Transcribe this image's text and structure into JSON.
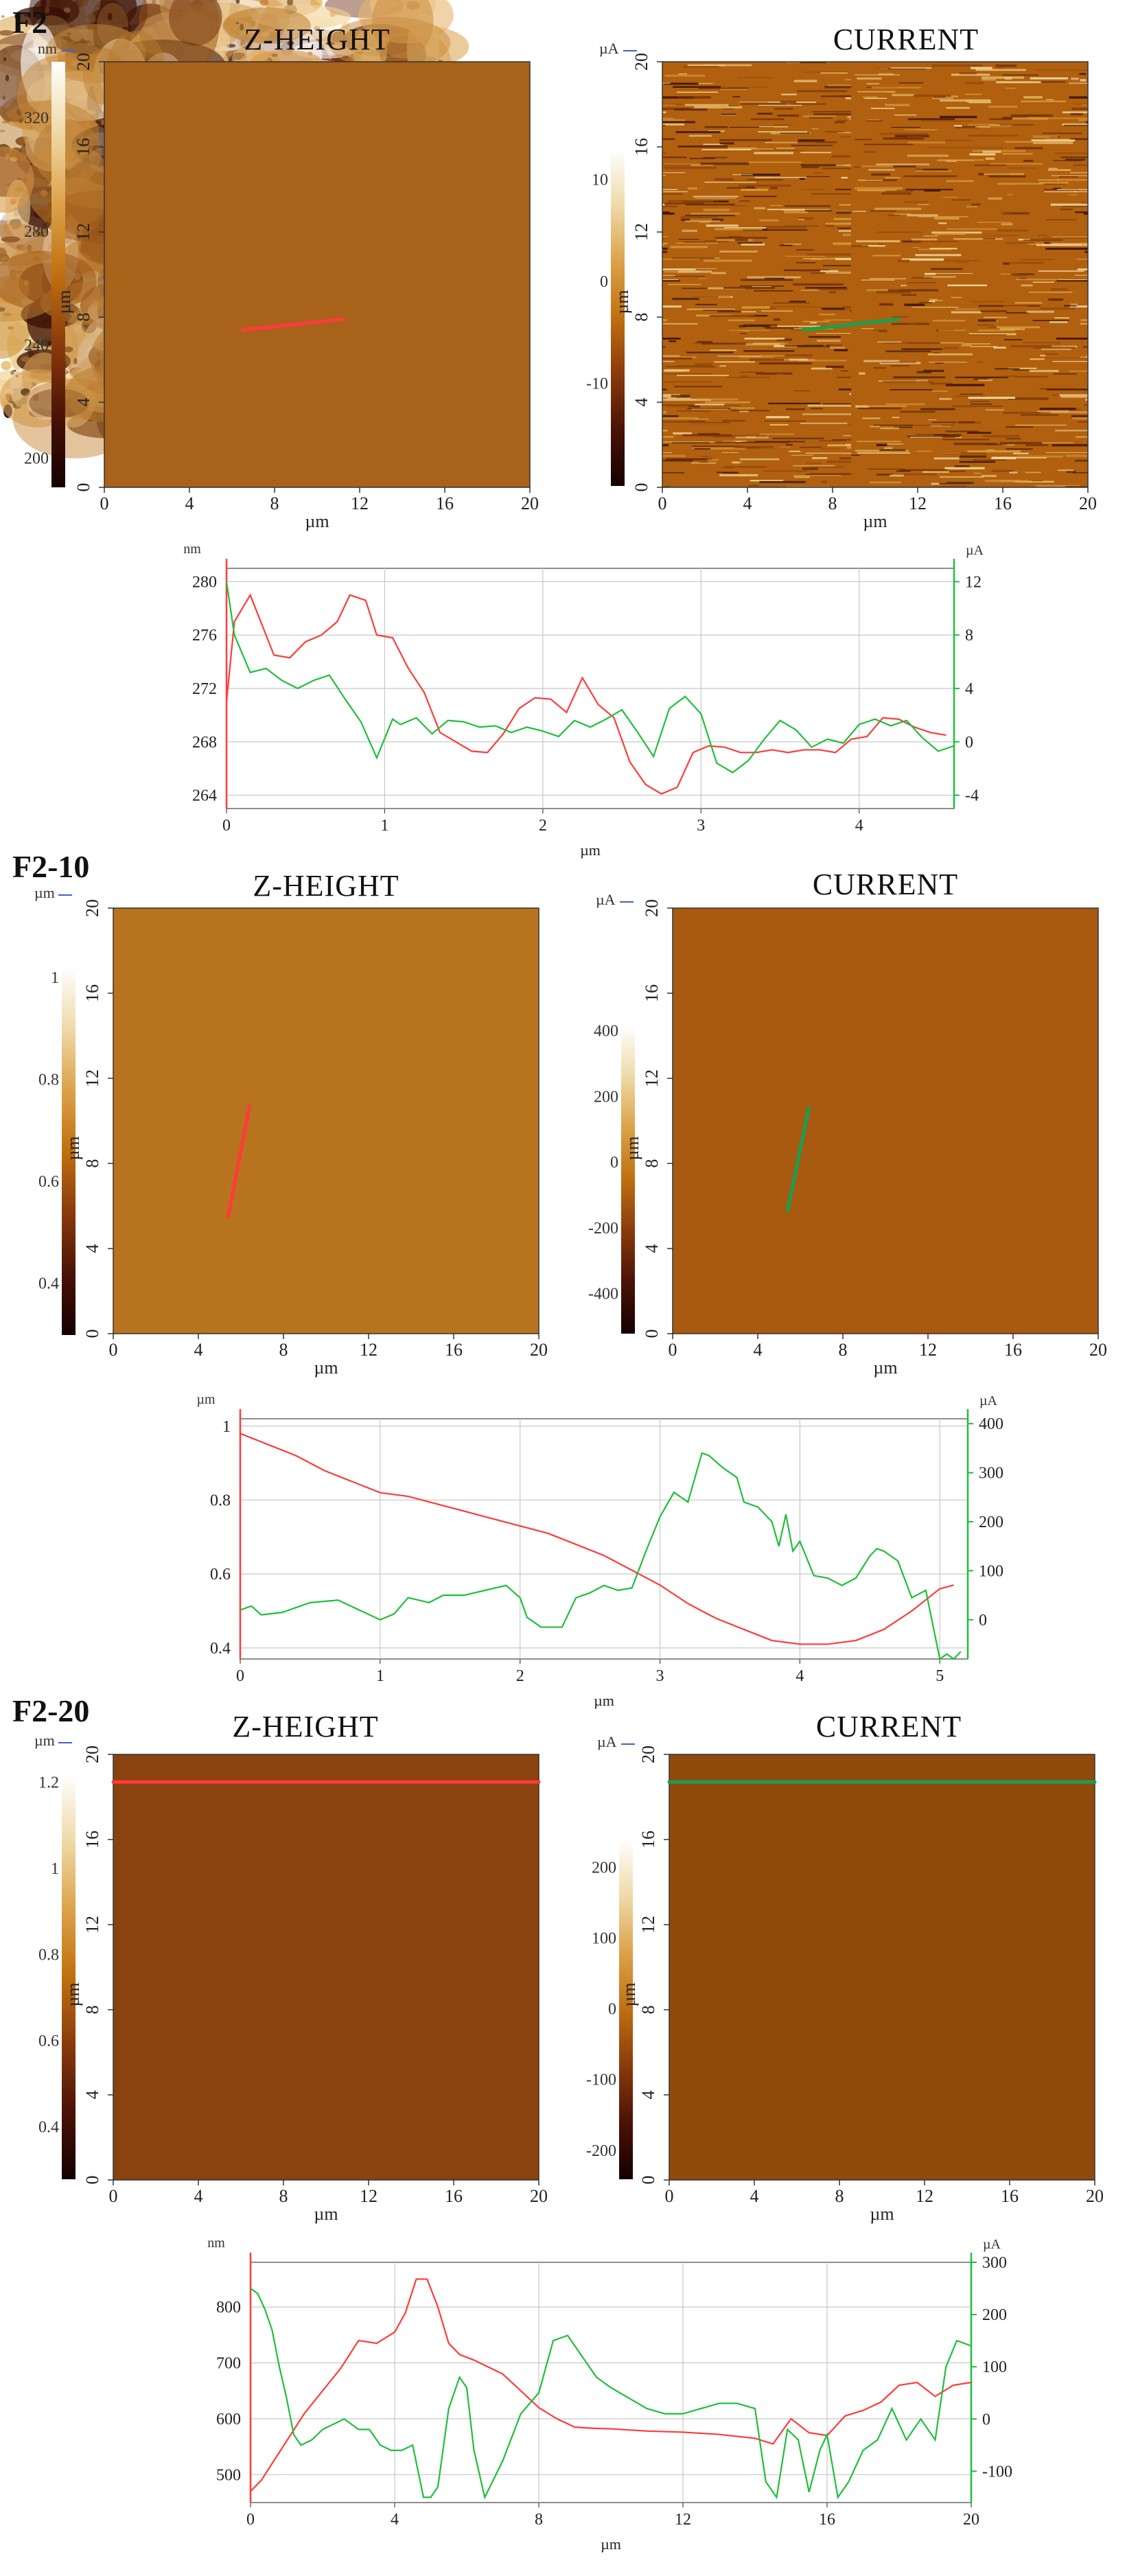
{
  "colors": {
    "height_line": "#ff3b3b",
    "current_line": "#1fbf3a",
    "current_line_dark": "#18a050",
    "grid": "#c8c8c8",
    "green_axis": "#1fbf3a",
    "red_axis": "#ff3b3b"
  },
  "chart_data": [
    {
      "id": "F2",
      "type": "line",
      "label": "F2",
      "height_map": {
        "title": "Z-HEIGHT",
        "unit": "nm",
        "colorbar_ticks": [
          "320",
          "280",
          "240",
          "200"
        ],
        "colorbar_values": [
          320,
          280,
          240,
          200
        ],
        "colorbar_range": [
          190,
          340
        ],
        "x_ticks": [
          "0",
          "4",
          "8",
          "12",
          "16",
          "20"
        ],
        "y_ticks": [
          "0",
          "4",
          "8",
          "12",
          "16",
          "20"
        ],
        "axis_unit": "µm",
        "profile_line": {
          "from": [
            6.5,
            7.4
          ],
          "to": [
            11.2,
            7.9
          ]
        }
      },
      "current_map": {
        "title": "CURRENT",
        "unit": "µA",
        "colorbar_ticks": [
          "10",
          "0",
          "-10"
        ],
        "colorbar_values": [
          10,
          0,
          -10
        ],
        "colorbar_range": [
          -20,
          13
        ],
        "x_ticks": [
          "0",
          "4",
          "8",
          "12",
          "16",
          "20"
        ],
        "y_ticks": [
          "0",
          "4",
          "8",
          "12",
          "16",
          "20"
        ],
        "axis_unit": "µm",
        "profile_line": {
          "from": [
            6.6,
            7.4
          ],
          "to": [
            11.1,
            7.9
          ]
        }
      },
      "profile": {
        "left_unit": "nm",
        "right_unit": "µA",
        "xlabel": "µm",
        "x_ticks": [
          "0",
          "1",
          "2",
          "3",
          "4"
        ],
        "left_ticks": [
          "280",
          "276",
          "272",
          "268",
          "264"
        ],
        "right_ticks": [
          "12",
          "8",
          "4",
          "0",
          "-4"
        ],
        "xlim": [
          0,
          4.6
        ],
        "left_lim": [
          263,
          281
        ],
        "right_lim": [
          -5,
          13
        ],
        "height_series": {
          "x": [
            0,
            0.05,
            0.15,
            0.3,
            0.4,
            0.5,
            0.6,
            0.7,
            0.78,
            0.88,
            0.95,
            1.05,
            1.15,
            1.25,
            1.35,
            1.45,
            1.55,
            1.65,
            1.75,
            1.85,
            1.95,
            2.05,
            2.15,
            2.25,
            2.35,
            2.45,
            2.55,
            2.65,
            2.75,
            2.85,
            2.95,
            3.05,
            3.15,
            3.25,
            3.35,
            3.45,
            3.55,
            3.65,
            3.75,
            3.85,
            3.95,
            4.05,
            4.15,
            4.25,
            4.35,
            4.45,
            4.55
          ],
          "y": [
            271,
            277,
            279,
            274.5,
            274.3,
            275.5,
            276,
            277,
            279,
            278.6,
            276,
            275.8,
            273.5,
            271.7,
            268.7,
            268,
            267.3,
            267.2,
            268.6,
            270.5,
            271.3,
            271.2,
            270.2,
            272.8,
            270.8,
            269.8,
            266.5,
            264.8,
            264.1,
            264.6,
            267.2,
            267.7,
            267.6,
            267.2,
            267.2,
            267.4,
            267.2,
            267.4,
            267.4,
            267.2,
            268.2,
            268.4,
            269.8,
            269.7,
            269.1,
            268.7,
            268.5
          ]
        },
        "current_series": {
          "x": [
            0,
            0.05,
            0.15,
            0.25,
            0.35,
            0.45,
            0.55,
            0.65,
            0.75,
            0.85,
            0.95,
            1.05,
            1.1,
            1.2,
            1.3,
            1.4,
            1.5,
            1.6,
            1.7,
            1.8,
            1.9,
            2.0,
            2.1,
            2.2,
            2.3,
            2.4,
            2.5,
            2.6,
            2.7,
            2.8,
            2.9,
            3.0,
            3.1,
            3.2,
            3.3,
            3.4,
            3.5,
            3.6,
            3.7,
            3.8,
            3.9,
            4.0,
            4.1,
            4.2,
            4.3,
            4.4,
            4.5,
            4.6
          ],
          "y": [
            12,
            8,
            5.2,
            5.5,
            4.6,
            4,
            4.6,
            5,
            3.2,
            1.5,
            -1.2,
            1.7,
            1.3,
            1.8,
            0.6,
            1.6,
            1.5,
            1.1,
            1.2,
            0.7,
            1.1,
            0.8,
            0.4,
            1.6,
            1.1,
            1.7,
            2.4,
            0.7,
            -1.1,
            2.5,
            3.4,
            2.1,
            -1.6,
            -2.3,
            -1.4,
            0.2,
            1.6,
            0.9,
            -0.4,
            0.2,
            -0.1,
            1.3,
            1.7,
            1.2,
            1.6,
            0.3,
            -0.7,
            -0.3
          ]
        }
      }
    },
    {
      "id": "F2-10",
      "type": "line",
      "label": "F2-10",
      "height_map": {
        "title": "Z-HEIGHT",
        "unit": "µm",
        "colorbar_ticks": [
          "1",
          "0.8",
          "0.6",
          "0.4"
        ],
        "colorbar_values": [
          1,
          0.8,
          0.6,
          0.4
        ],
        "colorbar_range": [
          0.3,
          1.02
        ],
        "x_ticks": [
          "0",
          "4",
          "8",
          "12",
          "16",
          "20"
        ],
        "y_ticks": [
          "0",
          "4",
          "8",
          "12",
          "16",
          "20"
        ],
        "axis_unit": "µm",
        "profile_line": {
          "from": [
            5.4,
            5.5
          ],
          "to": [
            6.4,
            10.7
          ]
        }
      },
      "current_map": {
        "title": "CURRENT",
        "unit": "µA",
        "colorbar_ticks": [
          "400",
          "200",
          "0",
          "-200",
          "-400"
        ],
        "colorbar_values": [
          400,
          200,
          0,
          -200,
          -400
        ],
        "colorbar_range": [
          -520,
          420
        ],
        "x_ticks": [
          "0",
          "4",
          "8",
          "12",
          "16",
          "20"
        ],
        "y_ticks": [
          "0",
          "4",
          "8",
          "12",
          "16",
          "20"
        ],
        "axis_unit": "µm",
        "profile_line": {
          "from": [
            5.4,
            5.8
          ],
          "to": [
            6.4,
            10.6
          ]
        }
      },
      "profile": {
        "left_unit": "µm",
        "right_unit": "µA",
        "xlabel": "µm",
        "x_ticks": [
          "0",
          "1",
          "2",
          "3",
          "4",
          "5"
        ],
        "left_ticks": [
          "1",
          "0.8",
          "0.6",
          "0.4"
        ],
        "right_ticks": [
          "400",
          "300",
          "200",
          "100",
          "0"
        ],
        "xlim": [
          0,
          5.2
        ],
        "left_lim": [
          0.37,
          1.02
        ],
        "right_lim": [
          -80,
          410
        ],
        "height_series": {
          "x": [
            0,
            0.2,
            0.4,
            0.6,
            0.8,
            1.0,
            1.2,
            1.4,
            1.6,
            1.8,
            2.0,
            2.2,
            2.4,
            2.6,
            2.8,
            3.0,
            3.2,
            3.4,
            3.6,
            3.8,
            4.0,
            4.2,
            4.4,
            4.6,
            4.8,
            5.0,
            5.1
          ],
          "y": [
            0.98,
            0.95,
            0.92,
            0.88,
            0.85,
            0.82,
            0.81,
            0.79,
            0.77,
            0.75,
            0.73,
            0.71,
            0.68,
            0.65,
            0.61,
            0.57,
            0.52,
            0.48,
            0.45,
            0.42,
            0.41,
            0.41,
            0.42,
            0.45,
            0.5,
            0.56,
            0.57
          ]
        },
        "current_series": {
          "x": [
            0,
            0.08,
            0.15,
            0.3,
            0.5,
            0.7,
            0.85,
            1.0,
            1.1,
            1.2,
            1.35,
            1.45,
            1.6,
            1.75,
            1.9,
            2.0,
            2.05,
            2.15,
            2.3,
            2.4,
            2.5,
            2.6,
            2.7,
            2.8,
            2.9,
            3.0,
            3.1,
            3.2,
            3.3,
            3.35,
            3.45,
            3.55,
            3.6,
            3.7,
            3.8,
            3.85,
            3.9,
            3.95,
            4.0,
            4.1,
            4.2,
            4.3,
            4.4,
            4.5,
            4.55,
            4.6,
            4.7,
            4.8,
            4.9,
            5.0,
            5.05,
            5.1,
            5.15
          ],
          "y": [
            20,
            28,
            10,
            15,
            35,
            40,
            20,
            0,
            12,
            45,
            35,
            50,
            50,
            60,
            70,
            45,
            5,
            -15,
            -15,
            45,
            55,
            70,
            60,
            65,
            140,
            210,
            260,
            240,
            340,
            335,
            310,
            290,
            240,
            230,
            200,
            150,
            215,
            140,
            160,
            90,
            85,
            70,
            85,
            130,
            145,
            140,
            120,
            45,
            60,
            -80,
            -70,
            -80,
            -65
          ]
        }
      }
    },
    {
      "id": "F2-20",
      "type": "line",
      "label": "F2-20",
      "height_map": {
        "title": "Z-HEIGHT",
        "unit": "µm",
        "colorbar_ticks": [
          "1.2",
          "1",
          "0.8",
          "0.6",
          "0.4"
        ],
        "colorbar_values": [
          1.2,
          1,
          0.8,
          0.6,
          0.4
        ],
        "colorbar_range": [
          0.28,
          1.22
        ],
        "x_ticks": [
          "0",
          "4",
          "8",
          "12",
          "16",
          "20"
        ],
        "y_ticks": [
          "0",
          "4",
          "8",
          "12",
          "16",
          "20"
        ],
        "axis_unit": "µm",
        "profile_line": {
          "from": [
            0,
            18.7
          ],
          "to": [
            20,
            18.7
          ]
        }
      },
      "current_map": {
        "title": "CURRENT",
        "unit": "µA",
        "colorbar_ticks": [
          "200",
          "100",
          "0",
          "-100",
          "-200"
        ],
        "colorbar_values": [
          200,
          100,
          0,
          -100,
          -200
        ],
        "colorbar_range": [
          -240,
          240
        ],
        "x_ticks": [
          "0",
          "4",
          "8",
          "12",
          "16",
          "20"
        ],
        "y_ticks": [
          "0",
          "4",
          "8",
          "12",
          "16",
          "20"
        ],
        "axis_unit": "µm",
        "profile_line": {
          "from": [
            0,
            18.7
          ],
          "to": [
            20,
            18.7
          ]
        }
      },
      "profile": {
        "left_unit": "nm",
        "right_unit": "µA",
        "xlabel": "µm",
        "x_ticks": [
          "0",
          "4",
          "8",
          "12",
          "16",
          "20"
        ],
        "left_ticks": [
          "800",
          "700",
          "600",
          "500"
        ],
        "right_ticks": [
          "300",
          "200",
          "100",
          "0",
          "-100"
        ],
        "xlim": [
          0,
          20
        ],
        "left_lim": [
          450,
          880
        ],
        "right_lim": [
          -160,
          300
        ],
        "height_series": {
          "x": [
            0,
            0.3,
            0.6,
            1.0,
            1.5,
            2.0,
            2.5,
            3.0,
            3.5,
            4.0,
            4.3,
            4.6,
            4.9,
            5.2,
            5.5,
            5.8,
            6.2,
            7.0,
            7.5,
            8.0,
            8.5,
            9.0,
            9.5,
            10,
            11,
            12,
            13,
            14,
            14.5,
            15,
            15.5,
            16,
            16.5,
            17,
            17.5,
            18,
            18.5,
            19,
            19.5,
            20
          ],
          "y": [
            470,
            490,
            520,
            560,
            610,
            650,
            690,
            740,
            735,
            755,
            790,
            850,
            850,
            800,
            735,
            715,
            705,
            680,
            650,
            620,
            600,
            585,
            583,
            582,
            578,
            576,
            572,
            565,
            555,
            600,
            575,
            570,
            605,
            615,
            630,
            660,
            665,
            640,
            660,
            665
          ]
        },
        "current_series": {
          "x": [
            0,
            0.2,
            0.4,
            0.6,
            0.8,
            1.0,
            1.2,
            1.4,
            1.7,
            2.0,
            2.3,
            2.6,
            3.0,
            3.3,
            3.6,
            3.9,
            4.2,
            4.5,
            4.8,
            5.0,
            5.2,
            5.5,
            5.8,
            6.0,
            6.2,
            6.5,
            7.0,
            7.5,
            8.0,
            8.4,
            8.8,
            9.2,
            9.6,
            10,
            10.5,
            11,
            11.5,
            12,
            12.5,
            13,
            13.5,
            14,
            14.3,
            14.6,
            14.9,
            15.2,
            15.5,
            15.8,
            16,
            16.3,
            16.6,
            17,
            17.4,
            17.8,
            18.2,
            18.6,
            19,
            19.3,
            19.6,
            20
          ],
          "y": [
            250,
            240,
            210,
            170,
            100,
            40,
            -30,
            -50,
            -40,
            -20,
            -10,
            0,
            -20,
            -20,
            -50,
            -60,
            -60,
            -50,
            -150,
            -150,
            -130,
            20,
            80,
            60,
            -60,
            -150,
            -80,
            10,
            50,
            150,
            160,
            120,
            80,
            60,
            40,
            20,
            10,
            10,
            20,
            30,
            30,
            20,
            -120,
            -150,
            -20,
            -40,
            -140,
            -60,
            -30,
            -150,
            -120,
            -60,
            -40,
            20,
            -40,
            0,
            -40,
            100,
            150,
            140
          ]
        }
      }
    }
  ]
}
